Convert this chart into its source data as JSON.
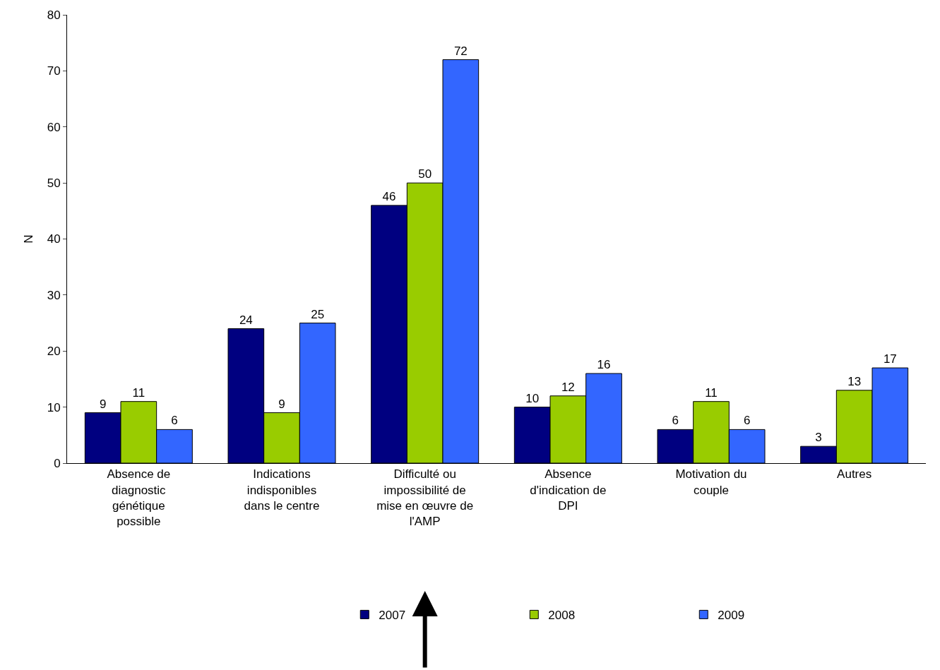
{
  "chart_data": {
    "type": "bar",
    "ylabel": "N",
    "categories": [
      "Absence de diagnostic génétique possible",
      "Indications indisponibles dans le centre",
      "Difficulté ou impossibilité de mise en œuvre de l'AMP",
      "Absence d'indication de DPI",
      "Motivation du couple",
      "Autres"
    ],
    "series": [
      {
        "name": "2007",
        "color": "#000080",
        "values": [
          9,
          24,
          46,
          10,
          6,
          3
        ]
      },
      {
        "name": "2008",
        "color": "#99cc00",
        "values": [
          11,
          9,
          50,
          12,
          11,
          13
        ]
      },
      {
        "name": "2009",
        "color": "#3366ff",
        "values": [
          6,
          25,
          72,
          16,
          6,
          17
        ]
      }
    ],
    "ylim": [
      0,
      80
    ],
    "yticks": [
      0,
      10,
      20,
      30,
      40,
      50,
      60,
      70,
      80
    ],
    "data_labels": true,
    "legend": "bottom"
  }
}
